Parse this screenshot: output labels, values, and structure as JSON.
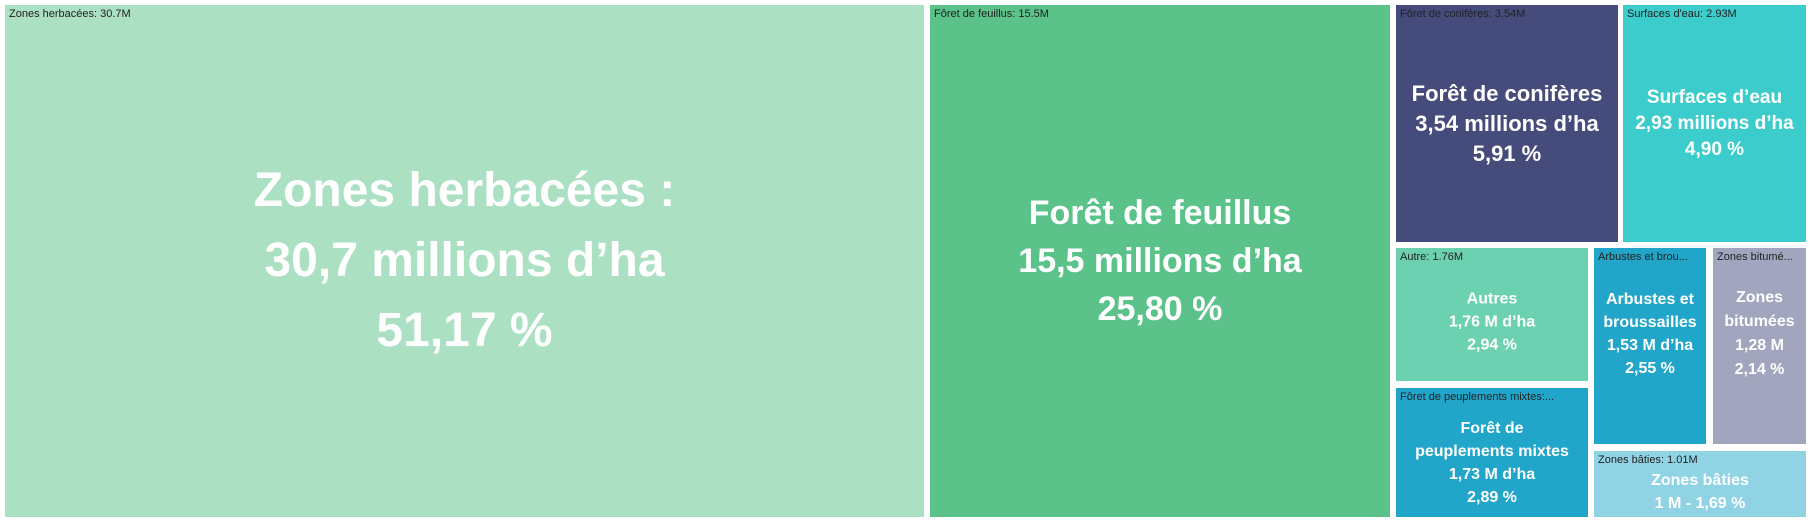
{
  "chart_data": {
    "type": "treemap",
    "unit": "M ha",
    "items": [
      {
        "tooltip": "Zones herbacées: 30.7M",
        "value": 30.7,
        "percent": 51.17,
        "color": "#ABE0C3",
        "lines": [
          "Zones herbacées :",
          "30,7 millions d’ha",
          "51,17 %"
        ]
      },
      {
        "tooltip": "Fôret de feuillus: 15.5M",
        "value": 15.5,
        "percent": 25.8,
        "color": "#5BC28A",
        "lines": [
          "Forêt de feuillus",
          "15,5 millions d’ha",
          "25,80 %"
        ]
      },
      {
        "tooltip": "Fôret de conifères: 3.54M",
        "value": 3.54,
        "percent": 5.91,
        "color": "#454B7B",
        "lines": [
          "Forêt de conifères",
          "3,54 millions d’ha",
          "5,91 %"
        ]
      },
      {
        "tooltip": "Surfaces d'eau: 2.93M",
        "value": 2.93,
        "percent": 4.9,
        "color": "#3DCCCC",
        "lines": [
          "Surfaces d’eau",
          "2,93 millions d’ha",
          "4,90 %"
        ]
      },
      {
        "tooltip": "Autre: 1.76M",
        "value": 1.76,
        "percent": 2.94,
        "color": "#6CD1B1",
        "lines": [
          "Autres",
          "1,76  M d’ha",
          "2,94 %"
        ]
      },
      {
        "tooltip": "Fôret de peuplements mixtes:...",
        "value": 1.73,
        "percent": 2.89,
        "color": "#21A6C9",
        "lines": [
          "Forêt de",
          "peuplements mixtes",
          "1,73 M d’ha",
          "2,89 %"
        ]
      },
      {
        "tooltip": "Arbustes et brou...",
        "value": 1.53,
        "percent": 2.55,
        "color": "#21A6C9",
        "lines": [
          "Arbustes et",
          "broussailles",
          "1,53 M d’ha",
          "2,55 %"
        ]
      },
      {
        "tooltip": "Zones bitumé...",
        "value": 1.28,
        "percent": 2.14,
        "color": "#A1A5BD",
        "lines": [
          "Zones",
          "bitumées",
          "1,28 M",
          "2,14 %"
        ]
      },
      {
        "tooltip": "Zones bâties: 1.01M",
        "value": 1.01,
        "percent": 1.69,
        "color": "#8FD3E4",
        "lines": [
          "Zones bâties",
          "1 M - 1,69 %"
        ]
      }
    ]
  }
}
